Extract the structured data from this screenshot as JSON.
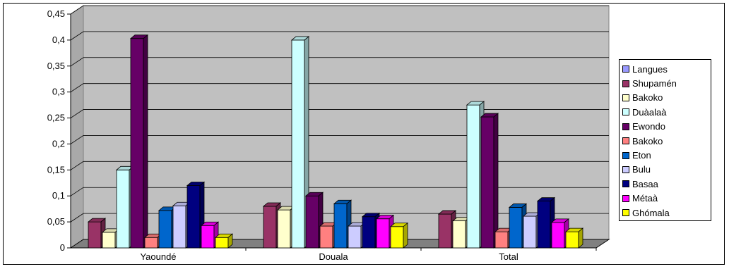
{
  "chart_data": {
    "type": "bar",
    "title": "",
    "xlabel": "",
    "ylabel": "",
    "ylim": [
      0,
      0.45
    ],
    "yticks": [
      "0",
      "0,05",
      "0,1",
      "0,15",
      "0,2",
      "0,25",
      "0,3",
      "0,35",
      "0,4",
      "0,45"
    ],
    "grid": true,
    "legend_position": "right",
    "categories": [
      "Yaoundé",
      "Douala",
      "Total"
    ],
    "legend_only": [
      {
        "name": "Langues",
        "color": "#9999ff"
      }
    ],
    "series": [
      {
        "name": "Shupamén",
        "color": "#993366",
        "values": [
          0.05,
          0.08,
          0.065
        ]
      },
      {
        "name": "Bakoko",
        "color": "#ffffcc",
        "values": [
          0.03,
          0.073,
          0.052
        ]
      },
      {
        "name": "Duàalaà",
        "color": "#ccffff",
        "values": [
          0.15,
          0.4,
          0.275
        ]
      },
      {
        "name": "Ewondo",
        "color": "#660066",
        "values": [
          0.403,
          0.1,
          0.252
        ]
      },
      {
        "name": "Bakoko",
        "color": "#ff8080",
        "values": [
          0.02,
          0.042,
          0.031
        ]
      },
      {
        "name": "Eton",
        "color": "#0066cc",
        "values": [
          0.072,
          0.085,
          0.078
        ]
      },
      {
        "name": "Bulu",
        "color": "#ccccff",
        "values": [
          0.081,
          0.042,
          0.061
        ]
      },
      {
        "name": "Basaa",
        "color": "#000080",
        "values": [
          0.12,
          0.06,
          0.09
        ]
      },
      {
        "name": "Métaà",
        "color": "#ff00ff",
        "values": [
          0.043,
          0.056,
          0.049
        ]
      },
      {
        "name": "Ghómala",
        "color": "#ffff00",
        "values": [
          0.02,
          0.041,
          0.031
        ]
      }
    ]
  }
}
